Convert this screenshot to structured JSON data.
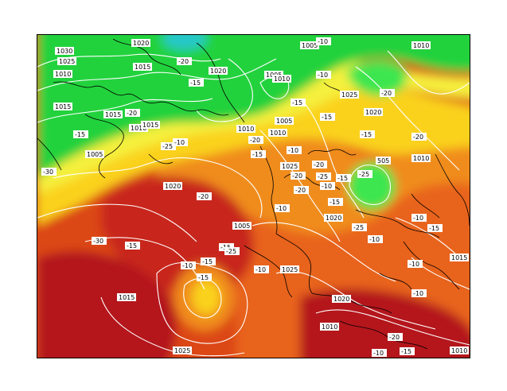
{
  "map": {
    "palette": {
      "deep_red": "#b4141e",
      "red": "#c8281e",
      "red_orange": "#dc4614",
      "orange": "#e8641a",
      "light_orange": "#f08c1e",
      "amber": "#f5aa1e",
      "yellow": "#fad21e",
      "pale_yellow": "#f5f03c",
      "green": "#23d23c",
      "light_green": "#3ce650",
      "cyan": "#28c8c8",
      "contour": "#ffffff",
      "coast": "#000000"
    },
    "pressure_labels": [
      "1020",
      "1030",
      "1025",
      "1010",
      "1015",
      "1020",
      "1005",
      "1010",
      "1005",
      "1015",
      "1015",
      "1010",
      "1025",
      "1005",
      "1015",
      "1010",
      "1020",
      "1005",
      "1025",
      "1020",
      "1015",
      "1025",
      "1025",
      "1020",
      "1010",
      "1015",
      "1010",
      "1020",
      "1010",
      "1005",
      "1010",
      "1010"
    ],
    "temperature_labels": [
      "-30",
      "-15",
      "-25",
      "-20",
      "-15",
      "-20",
      "-15",
      "-30",
      "-15",
      "-15",
      "-20",
      "-10",
      "-20",
      "-20",
      "-10",
      "-15",
      "-15",
      "-15",
      "-20",
      "-20",
      "-25",
      "-25",
      "-10",
      "-15",
      "-10",
      "-20",
      "-20",
      "-25",
      "-10",
      "-15",
      "-15",
      "-10",
      "-20",
      "-15",
      "-10",
      "-10",
      "-15",
      "-25",
      "-10",
      "-10",
      "-10",
      "-10",
      "-15",
      "-10"
    ],
    "low_label": "505"
  }
}
